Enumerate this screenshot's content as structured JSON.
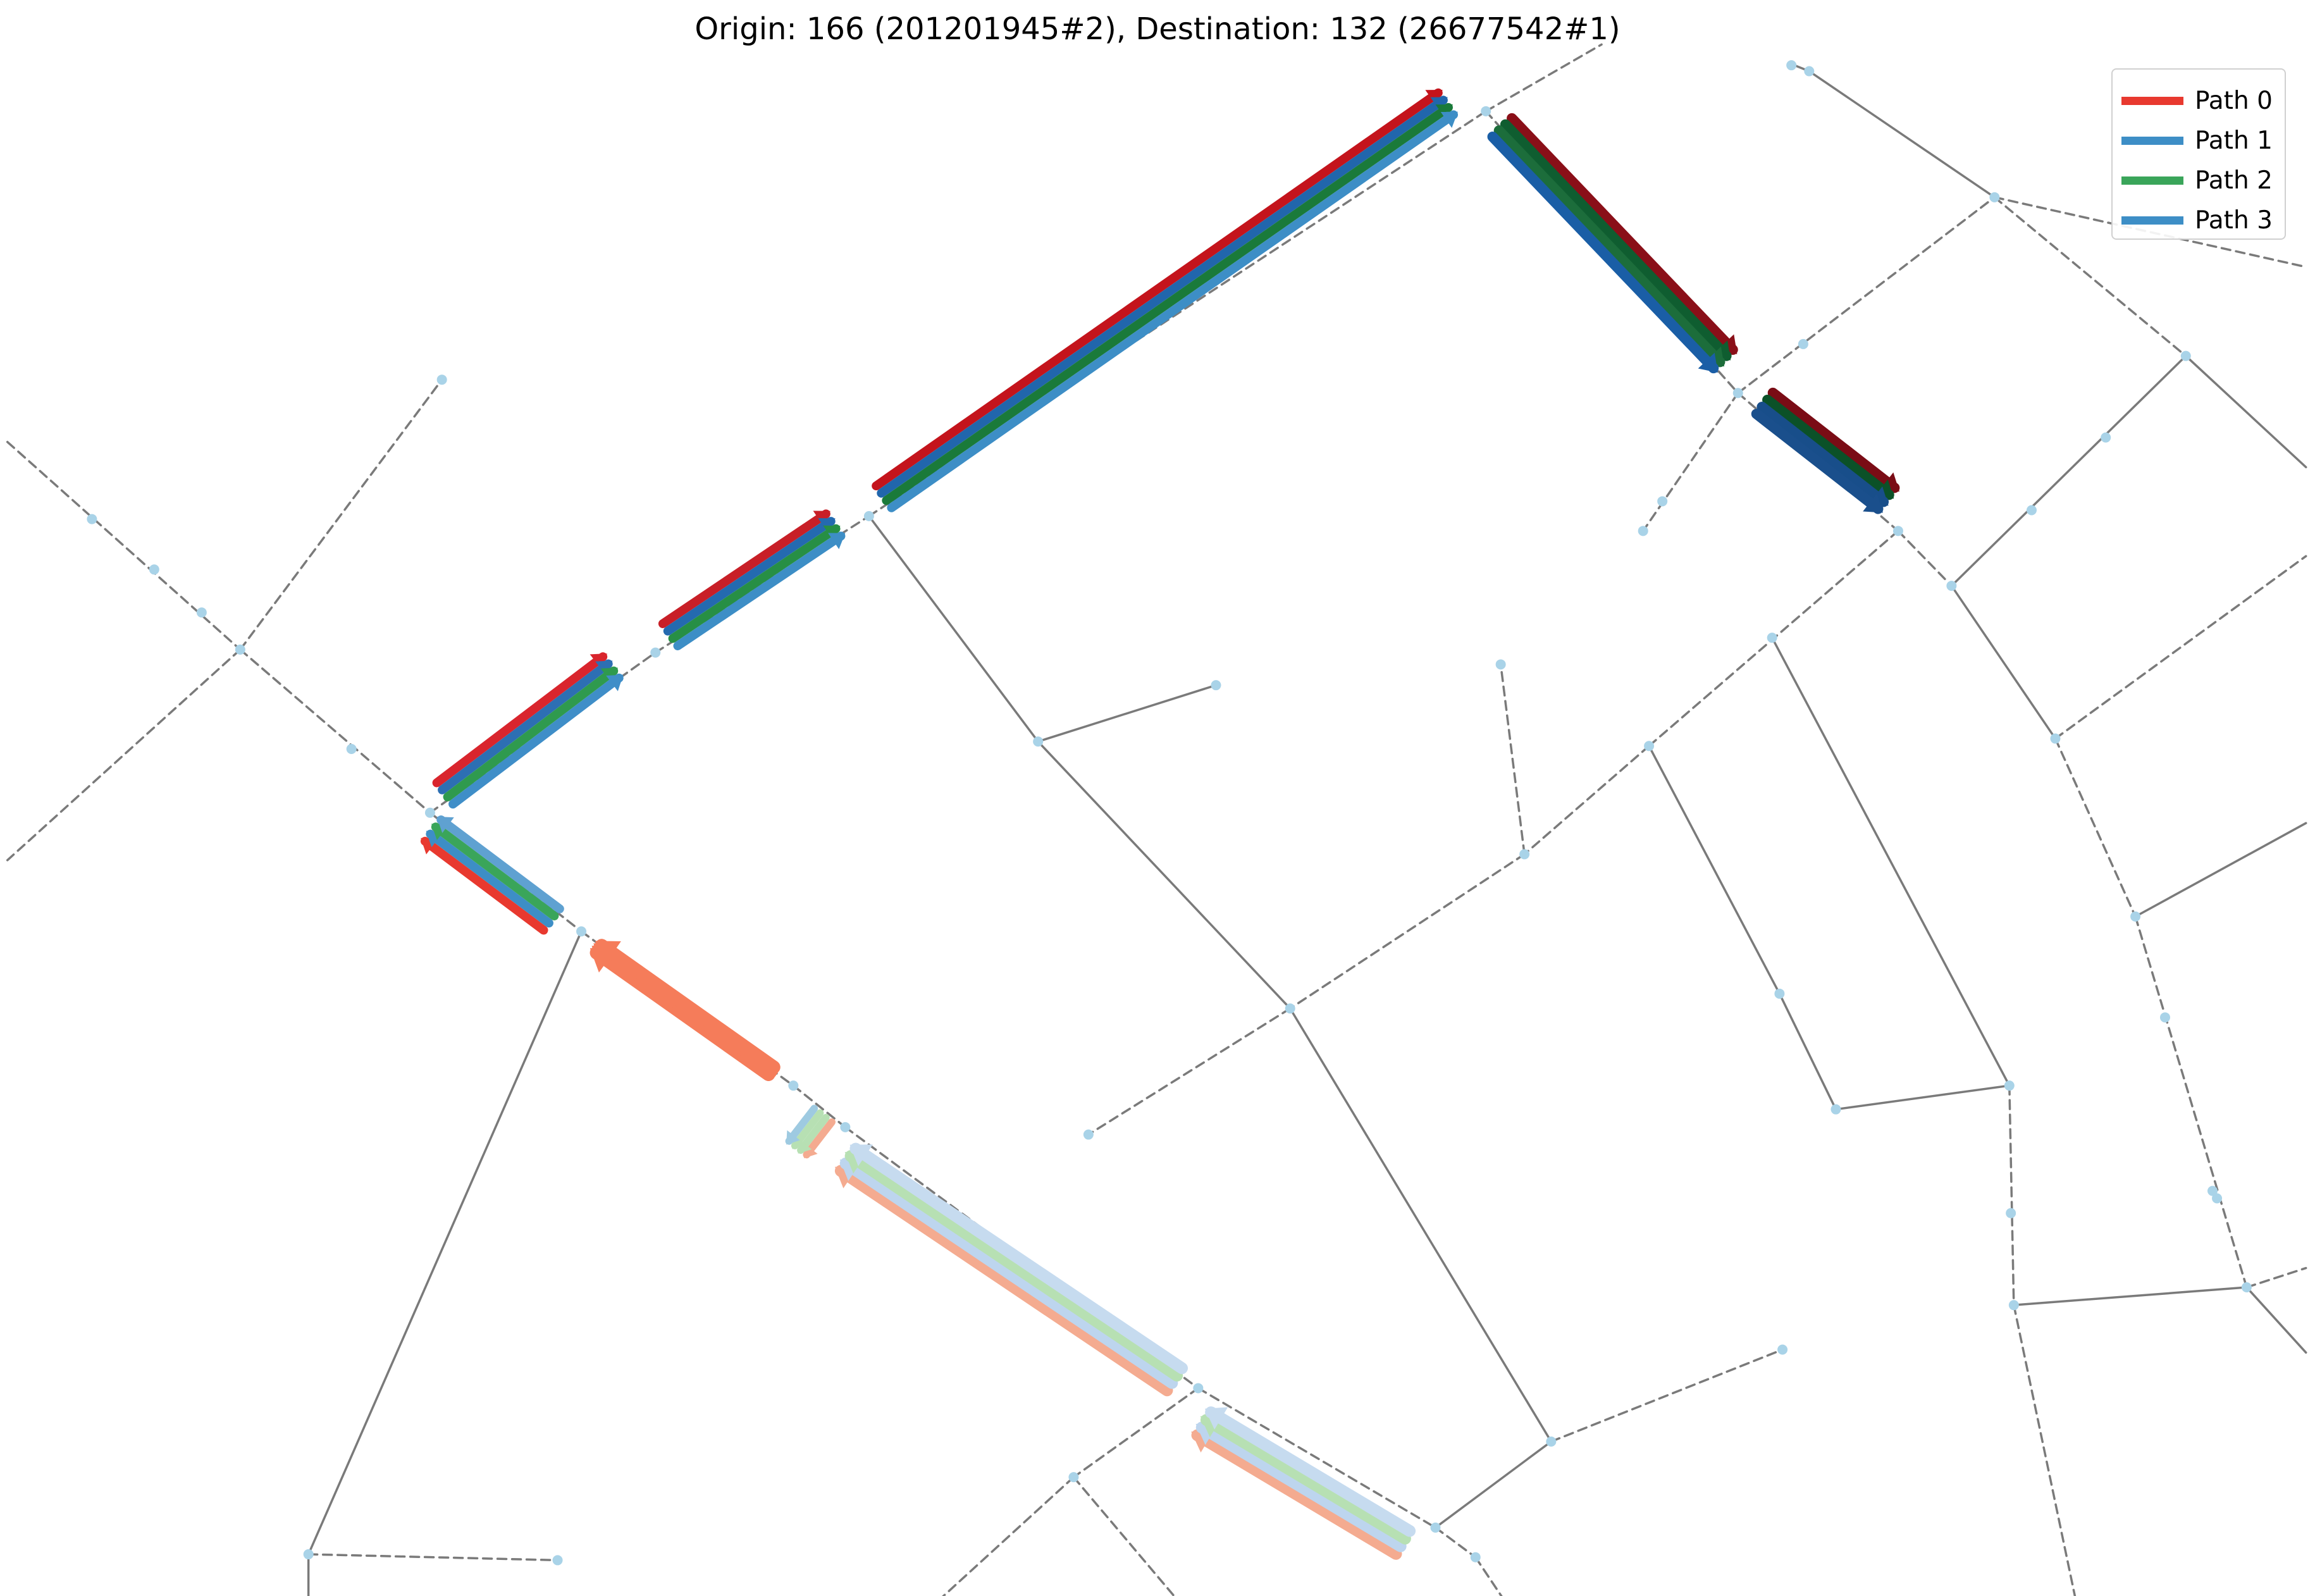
{
  "title": "Origin: 166 (201201945#2), Destination: 132 (26677542#1)",
  "legend": [
    {
      "label": "Path 0",
      "color": "#e8392f"
    },
    {
      "label": "Path 1",
      "color": "#3d8ec6"
    },
    {
      "label": "Path 2",
      "color": "#3aa55a"
    },
    {
      "label": "Path 3",
      "color": "#3d8ec6"
    }
  ],
  "colors": {
    "node": "#a9d3e8",
    "road_edge": "#7a7a7a",
    "path0_dark": "#c4141c",
    "path1_dark": "#2166ac",
    "path2_dark": "#1a7a3a",
    "path3_dark": "#3d8ec6"
  }
}
